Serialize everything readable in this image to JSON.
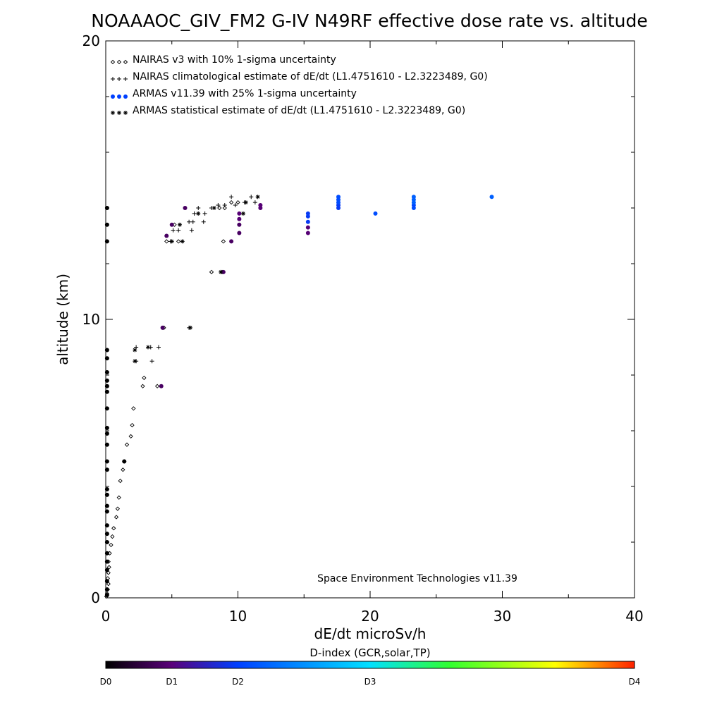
{
  "chart_data": {
    "type": "scatter",
    "title": "NOAAAOC_GIV_FM2 G-IV   N49RF  effective dose rate vs. altitude",
    "xlabel": "dE/dt microSv/h",
    "ylabel": "altitude (km)",
    "xlim": [
      0,
      40
    ],
    "ylim": [
      0,
      20
    ],
    "x_ticks": [
      "0",
      "10",
      "20",
      "30",
      "40"
    ],
    "y_ticks": [
      "0",
      "10",
      "20"
    ],
    "legend_position": "top-left",
    "annotation": "Space Environment Technologies v11.39",
    "colorbar": {
      "title": "D-index (GCR,solar,TP)",
      "labels": [
        {
          "text": "D0",
          "value": 0
        },
        {
          "text": "D1",
          "value": 0.125
        },
        {
          "text": "D2",
          "value": 0.25
        },
        {
          "text": "D3",
          "value": 0.5
        },
        {
          "text": "D4",
          "value": 1.0
        }
      ],
      "stops": [
        "#000000",
        "#5a007a",
        "#0040ff",
        "#00e0ff",
        "#30ff30",
        "#ffff00",
        "#ff2000"
      ]
    },
    "series": [
      {
        "name": "NAIRAS v3 with 10% 1-sigma uncertainty",
        "marker": "diamond",
        "color": "#000000",
        "points": [
          [
            0.05,
            0.05
          ],
          [
            0.1,
            0.15
          ],
          [
            0.15,
            0.3
          ],
          [
            0.2,
            0.5
          ],
          [
            0.15,
            0.7
          ],
          [
            0.2,
            0.9
          ],
          [
            0.25,
            1.1
          ],
          [
            0.2,
            1.3
          ],
          [
            0.3,
            1.6
          ],
          [
            0.4,
            1.9
          ],
          [
            0.5,
            2.2
          ],
          [
            0.6,
            2.5
          ],
          [
            0.8,
            2.9
          ],
          [
            0.9,
            3.2
          ],
          [
            1.0,
            3.6
          ],
          [
            1.1,
            4.2
          ],
          [
            1.3,
            4.6
          ],
          [
            1.4,
            4.9
          ],
          [
            1.6,
            5.5
          ],
          [
            1.9,
            5.8
          ],
          [
            2.0,
            6.2
          ],
          [
            2.1,
            6.8
          ],
          [
            2.8,
            7.6
          ],
          [
            2.9,
            7.9
          ],
          [
            3.9,
            7.6
          ],
          [
            4.4,
            9.7
          ],
          [
            4.6,
            12.8
          ],
          [
            5.5,
            12.8
          ],
          [
            5.2,
            13.4
          ],
          [
            8.0,
            11.7
          ],
          [
            8.8,
            11.7
          ],
          [
            8.9,
            12.8
          ],
          [
            8.6,
            14.0
          ],
          [
            9.0,
            14.0
          ],
          [
            9.5,
            14.2
          ],
          [
            10.0,
            14.2
          ]
        ]
      },
      {
        "name": "NAIRAS climatological estimate of dE/dt (L1.4751610 - L2.3223489, G0)",
        "marker": "plus",
        "color": "#000000",
        "points": [
          [
            2.3,
            8.5
          ],
          [
            3.5,
            8.5
          ],
          [
            2.3,
            9.0
          ],
          [
            3.4,
            9.0
          ],
          [
            4.0,
            9.0
          ],
          [
            6.3,
            9.7
          ],
          [
            4.9,
            12.8
          ],
          [
            5.1,
            13.2
          ],
          [
            5.5,
            13.2
          ],
          [
            6.5,
            13.2
          ],
          [
            6.3,
            13.5
          ],
          [
            6.6,
            13.5
          ],
          [
            7.4,
            13.5
          ],
          [
            6.7,
            13.8
          ],
          [
            7.5,
            13.8
          ],
          [
            7.0,
            14.0
          ],
          [
            8.0,
            14.0
          ],
          [
            8.5,
            14.1
          ],
          [
            9.0,
            14.1
          ],
          [
            9.8,
            14.1
          ],
          [
            10.5,
            14.2
          ],
          [
            11.3,
            14.2
          ],
          [
            11.0,
            14.4
          ],
          [
            9.5,
            14.4
          ]
        ]
      },
      {
        "name": "ARMAS v11.39 with 25% 1-sigma uncertainty",
        "marker": "dot",
        "color": "#0040ff",
        "points": [
          [
            0.1,
            0.1
          ],
          [
            0.1,
            0.3
          ],
          [
            0.1,
            0.6
          ],
          [
            0.1,
            1.0
          ],
          [
            0.1,
            1.3
          ],
          [
            0.1,
            1.6
          ],
          [
            0.1,
            2.0
          ],
          [
            0.1,
            2.3
          ],
          [
            0.1,
            2.6
          ],
          [
            0.1,
            3.1
          ],
          [
            0.1,
            3.3
          ],
          [
            0.1,
            3.7
          ],
          [
            0.1,
            3.9
          ],
          [
            0.1,
            4.6
          ],
          [
            0.1,
            4.9
          ],
          [
            0.1,
            5.5
          ],
          [
            0.1,
            5.9
          ],
          [
            0.1,
            6.1
          ],
          [
            0.1,
            6.8
          ],
          [
            0.1,
            7.4
          ],
          [
            0.1,
            7.6
          ],
          [
            0.1,
            7.8
          ],
          [
            0.1,
            8.1
          ],
          [
            0.1,
            8.6
          ],
          [
            0.1,
            8.9
          ],
          [
            0.1,
            12.8
          ],
          [
            0.1,
            13.4
          ],
          [
            0.1,
            14.0
          ],
          [
            1.4,
            4.9
          ],
          [
            4.2,
            7.6
          ],
          [
            4.3,
            9.7
          ],
          [
            4.6,
            13.0
          ],
          [
            5.0,
            13.4
          ],
          [
            6.0,
            14.0
          ],
          [
            8.9,
            11.7
          ],
          [
            9.5,
            12.8
          ],
          [
            10.1,
            13.1
          ],
          [
            10.1,
            13.4
          ],
          [
            10.1,
            13.6
          ],
          [
            10.1,
            13.8
          ],
          [
            11.7,
            14.0
          ],
          [
            11.7,
            14.1
          ],
          [
            15.3,
            13.1
          ],
          [
            15.3,
            13.3
          ],
          [
            15.3,
            13.5
          ],
          [
            15.3,
            13.7
          ],
          [
            15.3,
            13.8
          ],
          [
            17.6,
            14.0
          ],
          [
            17.6,
            14.1
          ],
          [
            17.6,
            14.2
          ],
          [
            17.6,
            14.3
          ],
          [
            17.6,
            14.4
          ],
          [
            20.4,
            13.8
          ],
          [
            23.3,
            14.0
          ],
          [
            23.3,
            14.1
          ],
          [
            23.3,
            14.2
          ],
          [
            23.3,
            14.3
          ],
          [
            23.3,
            14.4
          ],
          [
            29.2,
            14.4
          ]
        ]
      },
      {
        "name": "ARMAS statistical estimate of dE/dt (L1.4751610 - L2.3223489, G0)",
        "marker": "asterisk",
        "color": "#000000",
        "points": [
          [
            2.2,
            8.5
          ],
          [
            2.2,
            8.9
          ],
          [
            3.2,
            9.0
          ],
          [
            6.4,
            9.7
          ],
          [
            5.0,
            12.8
          ],
          [
            5.8,
            12.8
          ],
          [
            8.7,
            11.7
          ],
          [
            5.6,
            13.4
          ],
          [
            7.0,
            13.8
          ],
          [
            10.4,
            13.8
          ],
          [
            8.2,
            14.0
          ],
          [
            10.6,
            14.2
          ],
          [
            11.5,
            14.4
          ]
        ]
      }
    ],
    "point_levels": [
      0,
      0,
      0,
      0,
      0,
      0,
      0,
      0,
      0,
      0,
      0,
      0,
      0,
      0,
      0,
      0,
      0,
      0,
      0,
      0,
      0,
      0,
      0,
      0,
      0,
      0,
      0,
      0,
      0,
      0.1,
      0.1,
      0.1,
      0.1,
      0.1,
      0.1,
      0.1,
      0.1,
      0.1,
      0.12,
      0.12,
      0.12,
      0.12,
      0.12,
      0.12,
      0.24,
      0.24,
      0.24,
      0.24,
      0.24,
      0.27,
      0.27,
      0.27,
      0.27,
      0.27,
      0.26,
      0.3,
      0.3,
      0.3,
      0.3,
      0.3,
      0.48
    ]
  }
}
